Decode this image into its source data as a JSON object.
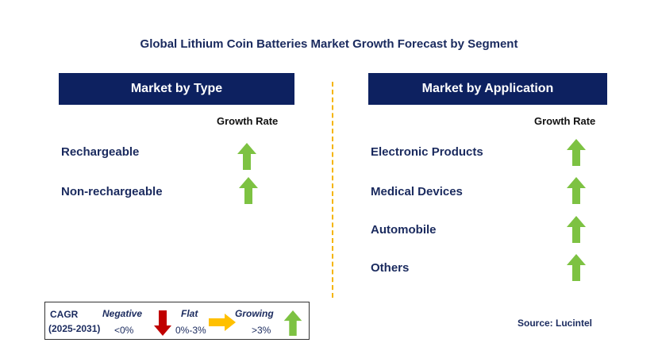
{
  "title": "Global Lithium Coin Batteries Market Growth Forecast by Segment",
  "left_panel": {
    "header": "Market by Type",
    "growth_rate_label": "Growth Rate",
    "rows": [
      {
        "label": "Rechargeable",
        "trend": "growing"
      },
      {
        "label": "Non-rechargeable",
        "trend": "growing"
      }
    ]
  },
  "right_panel": {
    "header": "Market by Application",
    "growth_rate_label": "Growth Rate",
    "rows": [
      {
        "label": "Electronic Products",
        "trend": "growing"
      },
      {
        "label": "Medical Devices",
        "trend": "growing"
      },
      {
        "label": "Automobile",
        "trend": "growing"
      },
      {
        "label": "Others",
        "trend": "growing"
      }
    ]
  },
  "legend": {
    "cagr_label": "CAGR",
    "period": "(2025-2031)",
    "negative": {
      "label": "Negative",
      "range": "<0%",
      "icon": "red-down-arrow-icon"
    },
    "flat": {
      "label": "Flat",
      "range": "0%-3%",
      "icon": "yellow-right-arrow-icon"
    },
    "growing": {
      "label": "Growing",
      "range": ">3%",
      "icon": "green-up-arrow-icon"
    }
  },
  "source": "Source: Lucintel",
  "colors": {
    "header_bg": "#0d2160",
    "green_arrow": "#7dc242",
    "red_arrow": "#c00000",
    "yellow_arrow": "#ffc000",
    "divider": "#f5b400"
  }
}
